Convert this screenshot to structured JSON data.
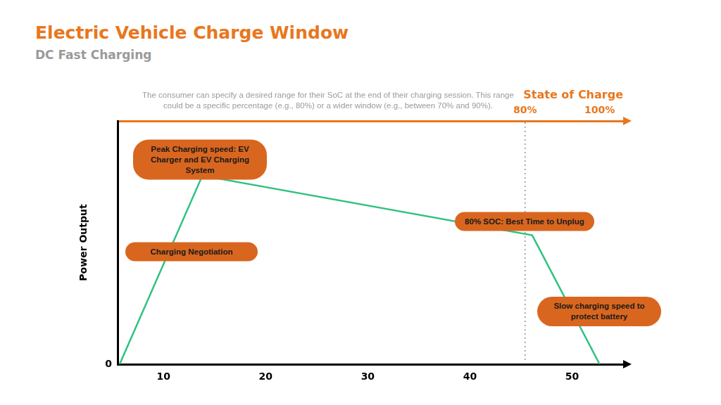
{
  "chart_data": {
    "type": "line",
    "title": "Electric Vehicle Charge Window",
    "subtitle": "DC Fast Charging",
    "note": "The consumer can specify a desired range for their SoC at the end of their charging session. This range could be a specific percentage (e.g., 80%) or a wider window (e.g., between 70% and 90%).",
    "y_label": "Power Output",
    "x": [
      5.7,
      13.8,
      46.1,
      52.7
    ],
    "values": [
      0,
      77.5,
      53,
      0
    ],
    "color": "#2ec27e",
    "xlim": [
      5.5,
      55
    ],
    "xticks": [
      10,
      20,
      30,
      40,
      50
    ],
    "ylim": [
      0,
      100
    ],
    "yticks": [
      0
    ],
    "grid": false,
    "soc_axis": {
      "title": "State of Charge",
      "color": "#e8771e",
      "ticks": [
        {
          "value": 45.4,
          "label": "80%"
        },
        {
          "value": 52.7,
          "label": "100%"
        }
      ]
    },
    "reference_line": {
      "x": 45.4,
      "line_style": "dotted"
    },
    "annotations": [
      {
        "text": "Peak Charging speed: EV Charger and EV Charging System"
      },
      {
        "text": "Charging Negotiation"
      },
      {
        "text": "80% SOC: Best Time to Unplug"
      },
      {
        "text": "Slow charging speed to protect battery"
      }
    ]
  }
}
